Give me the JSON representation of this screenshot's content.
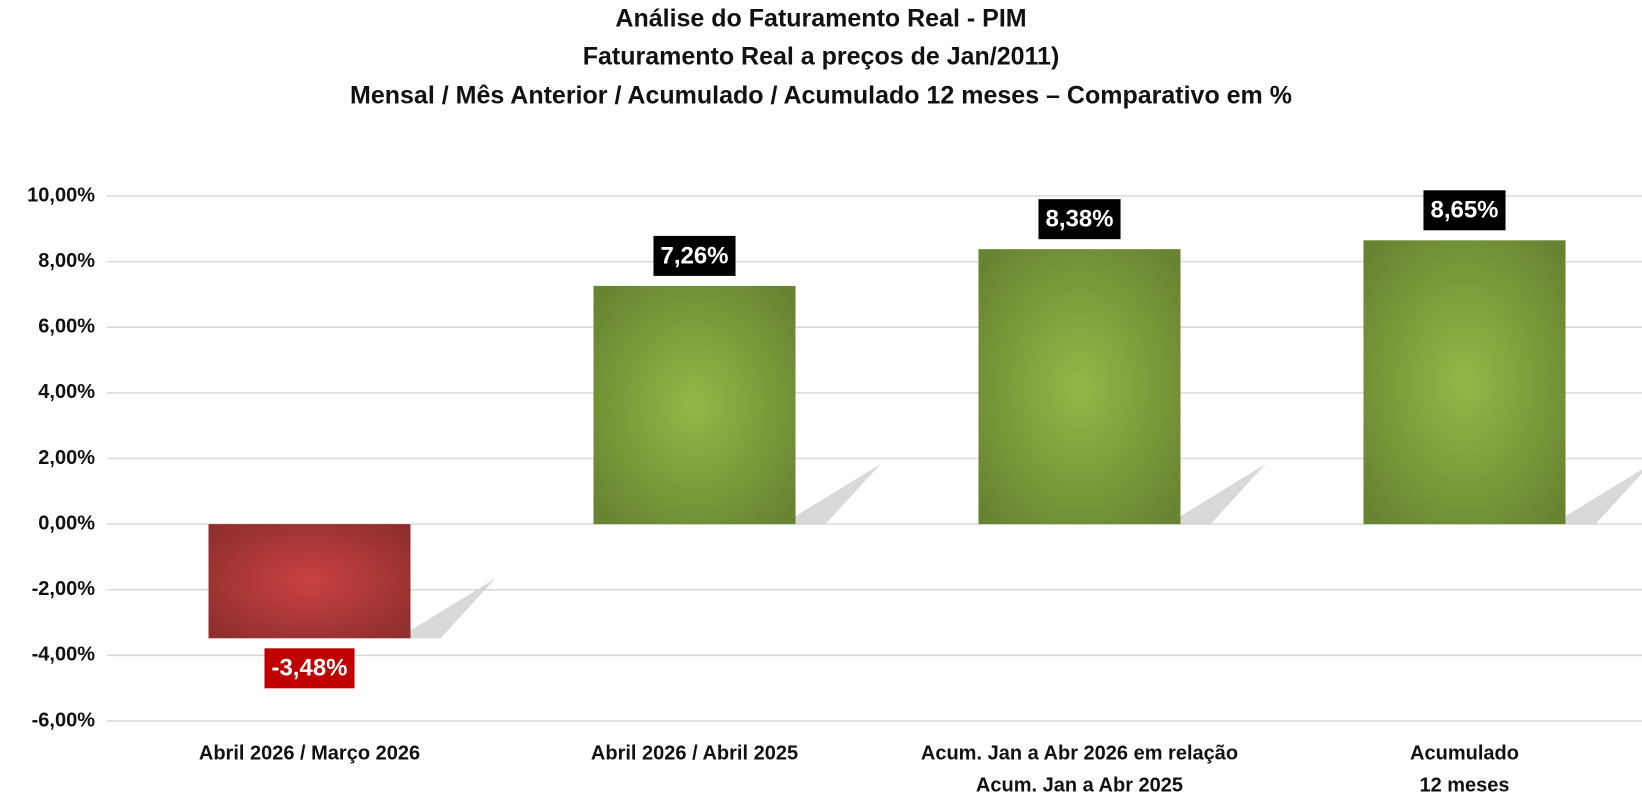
{
  "chart_data": {
    "type": "bar",
    "title": "Análise do Faturamento Real - PIM",
    "subtitle": [
      "Faturamento Real a preços de Jan/2011)",
      "Mensal / Mês Anterior / Acumulado / Acumulado 12 meses – Comparativo em %"
    ],
    "categories": [
      [
        "Abril 2026 / Março 2026"
      ],
      [
        "Abril 2026 / Abril 2025"
      ],
      [
        "Acum. Jan a Abr 2026 em relação",
        "Acum. Jan a Abr 2025"
      ],
      [
        "Acumulado",
        "12 meses"
      ]
    ],
    "values": [
      -3.48,
      7.26,
      8.38,
      8.65
    ],
    "value_labels": [
      "-3,48%",
      "7,26%",
      "8,38%",
      "8,65%"
    ],
    "colors": [
      "#a83636",
      "#7a9a3a",
      "#7a9a3a",
      "#7a9a3a"
    ],
    "value_label_colors": [
      "#c00000",
      "#000000",
      "#000000",
      "#000000"
    ],
    "ylim": [
      -6,
      10
    ],
    "yticks": [
      {
        "value": -6,
        "label": "-6,00%"
      },
      {
        "value": -4,
        "label": "-4,00%"
      },
      {
        "value": -2,
        "label": "-2,00%"
      },
      {
        "value": 0,
        "label": "0,00%"
      },
      {
        "value": 2,
        "label": "2,00%"
      },
      {
        "value": 4,
        "label": "4,00%"
      },
      {
        "value": 6,
        "label": "6,00%"
      },
      {
        "value": 8,
        "label": "8,00%"
      },
      {
        "value": 10,
        "label": "10,00%"
      }
    ],
    "grid": true
  }
}
